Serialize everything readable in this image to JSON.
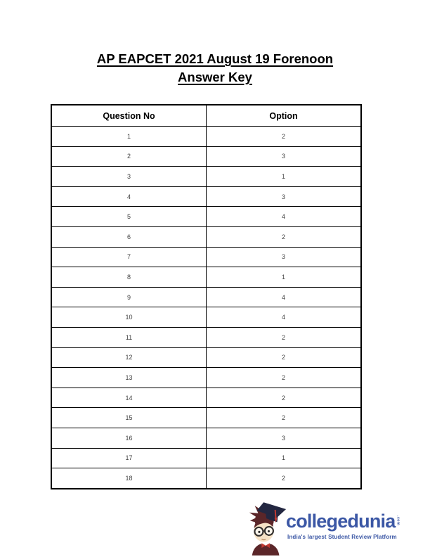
{
  "document": {
    "title_line1": "AP EAPCET 2021 August 19 Forenoon",
    "title_line2": "Answer Key"
  },
  "table": {
    "headers": [
      "Question No",
      "Option"
    ],
    "rows": [
      {
        "question": "1",
        "option": "2"
      },
      {
        "question": "2",
        "option": "3"
      },
      {
        "question": "3",
        "option": "1"
      },
      {
        "question": "4",
        "option": "3"
      },
      {
        "question": "5",
        "option": "4"
      },
      {
        "question": "6",
        "option": "2"
      },
      {
        "question": "7",
        "option": "3"
      },
      {
        "question": "8",
        "option": "1"
      },
      {
        "question": "9",
        "option": "4"
      },
      {
        "question": "10",
        "option": "4"
      },
      {
        "question": "11",
        "option": "2"
      },
      {
        "question": "12",
        "option": "2"
      },
      {
        "question": "13",
        "option": "2"
      },
      {
        "question": "14",
        "option": "2"
      },
      {
        "question": "15",
        "option": "2"
      },
      {
        "question": "16",
        "option": "3"
      },
      {
        "question": "17",
        "option": "1"
      },
      {
        "question": "18",
        "option": "2"
      }
    ]
  },
  "logo": {
    "brand": "collegedunia",
    "suffix": ".com",
    "tagline": "India's largest Student Review Platform",
    "colors": {
      "brand_blue": "#3b57a5",
      "cap": "#232741",
      "hair": "#5b2629",
      "skin": "#f6e2c6",
      "glasses": "#33302e",
      "accent_red": "#c23a32"
    }
  }
}
